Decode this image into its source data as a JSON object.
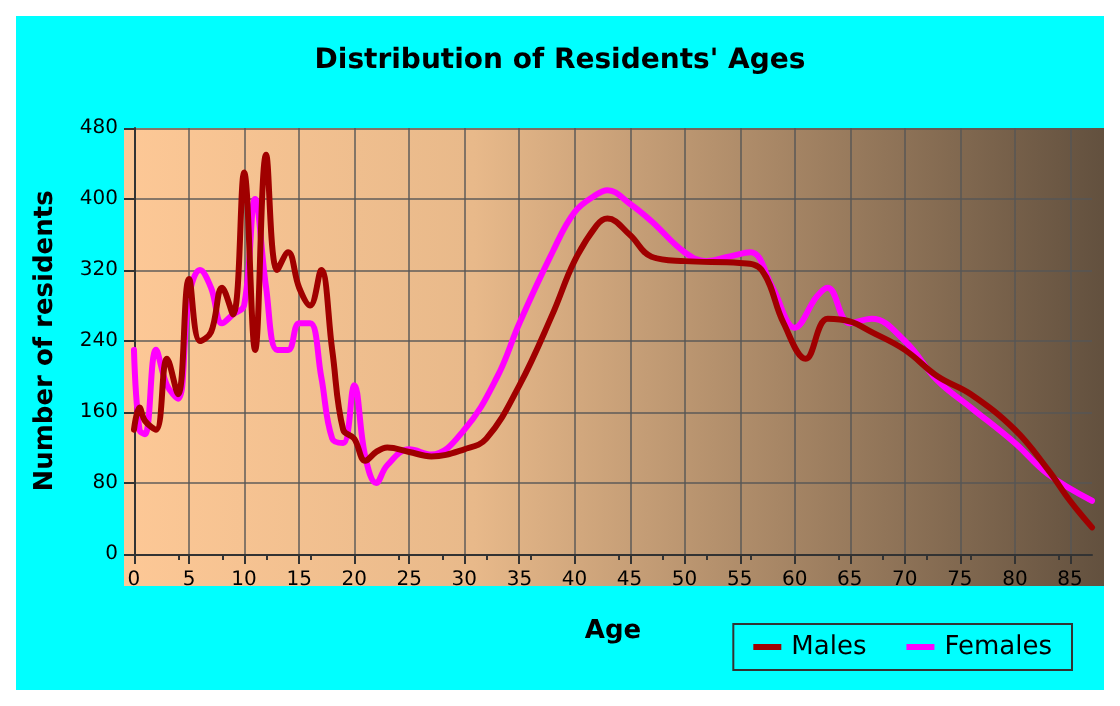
{
  "chart_data": {
    "type": "line",
    "title": "Distribution of Residents' Ages",
    "xlabel": "Age",
    "ylabel": "Number of residents",
    "xlim": [
      0,
      87
    ],
    "xticks": [
      0,
      5,
      10,
      15,
      20,
      25,
      30,
      35,
      40,
      45,
      50,
      55,
      60,
      65,
      70,
      75,
      80,
      85
    ],
    "ylim": [
      0,
      480
    ],
    "yticks": [
      0,
      80,
      160,
      240,
      320,
      400,
      480
    ],
    "grid": true,
    "legend": "bottom right",
    "marker": "none",
    "line_style": "solid",
    "series": [
      {
        "name": "Males",
        "color": "#a00000",
        "x": [
          0,
          0.5,
          1,
          2,
          3,
          4,
          5,
          6,
          7,
          8,
          9,
          10,
          11,
          12,
          13,
          14,
          15,
          16,
          17,
          18,
          19,
          20,
          21,
          22,
          23,
          25,
          27,
          30,
          32,
          35,
          38,
          40,
          42,
          43,
          45,
          47,
          50,
          55,
          57,
          59,
          61,
          63,
          65,
          67,
          70,
          73,
          76,
          80,
          83,
          85,
          87
        ],
        "values": [
          140,
          165,
          150,
          140,
          220,
          180,
          310,
          240,
          250,
          300,
          270,
          430,
          230,
          450,
          320,
          340,
          300,
          280,
          320,
          230,
          140,
          130,
          105,
          115,
          120,
          115,
          110,
          118,
          130,
          190,
          270,
          330,
          370,
          378,
          360,
          335,
          330,
          328,
          320,
          260,
          220,
          265,
          262,
          250,
          230,
          200,
          180,
          140,
          95,
          60,
          30
        ]
      },
      {
        "name": "Females",
        "color": "#ff00ff",
        "x": [
          0,
          0.5,
          1,
          2,
          3,
          4,
          5,
          6,
          7,
          8,
          9,
          10,
          11,
          12,
          13,
          14,
          15,
          16,
          17,
          18,
          19,
          20,
          21,
          22,
          23,
          25,
          27,
          30,
          33,
          35,
          38,
          40,
          42,
          43,
          45,
          47,
          50,
          52,
          54,
          56,
          58,
          60,
          62,
          63,
          65,
          67,
          70,
          73,
          76,
          80,
          83,
          87
        ],
        "values": [
          230,
          140,
          135,
          230,
          190,
          175,
          290,
          320,
          300,
          260,
          270,
          280,
          400,
          300,
          230,
          230,
          260,
          260,
          200,
          130,
          125,
          190,
          110,
          80,
          100,
          118,
          112,
          140,
          200,
          260,
          340,
          385,
          405,
          410,
          395,
          375,
          340,
          330,
          335,
          340,
          300,
          255,
          290,
          300,
          260,
          265,
          240,
          195,
          165,
          125,
          90,
          60
        ]
      }
    ]
  }
}
